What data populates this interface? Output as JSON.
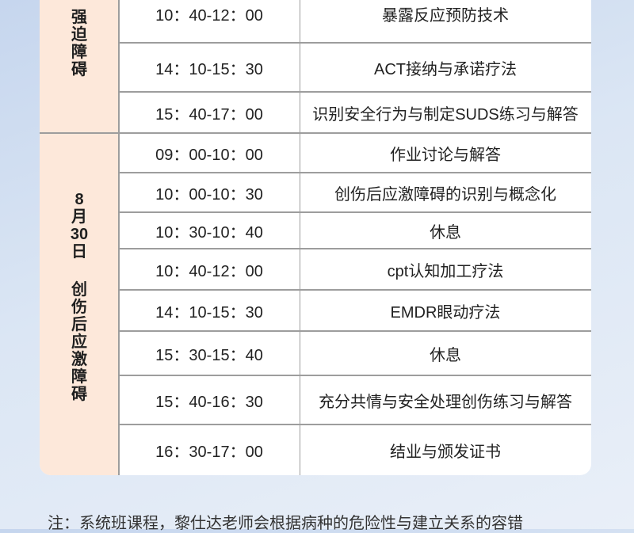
{
  "schedule": [
    {
      "topic": "强迫障碍",
      "sessions": [
        {
          "time": "10：40-12：00",
          "content": "暴露反应预防技术"
        },
        {
          "time": "14：10-15：30",
          "content": "ACT接纳与承诺疗法"
        },
        {
          "time": "15：40-17：00",
          "content": "识别安全行为与制定SUDS练习与解答"
        }
      ]
    },
    {
      "date": "8月30日",
      "topic": "创伤后应激障碍",
      "sessions": [
        {
          "time": "09：00-10：00",
          "content": "作业讨论与解答"
        },
        {
          "time": "10：00-10：30",
          "content": "创伤后应激障碍的识别与概念化"
        },
        {
          "time": "10：30-10：40",
          "content": "休息"
        },
        {
          "time": "10：40-12：00",
          "content": "cpt认知加工疗法"
        },
        {
          "time": "14：10-15：30",
          "content": "EMDR眼动疗法"
        },
        {
          "time": "15：30-15：40",
          "content": "休息"
        },
        {
          "time": "15：40-16：30",
          "content": "充分共情与安全处理创伤练习与解答"
        },
        {
          "time": "16：30-17：00",
          "content": "结业与颁发证书"
        }
      ]
    }
  ],
  "note": "注：系统班课程，黎仕达老师会根据病种的危险性与建立关系的容错"
}
